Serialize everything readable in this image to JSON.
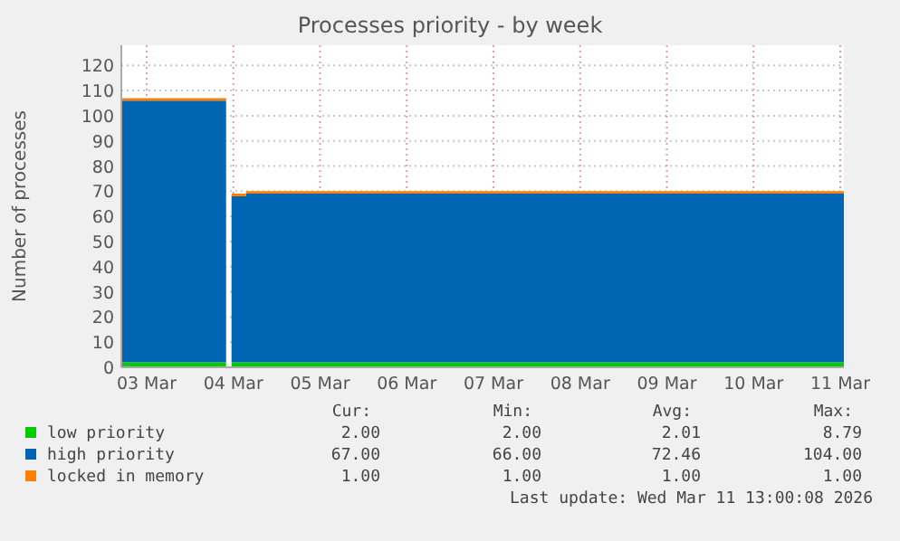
{
  "chart_data": {
    "type": "area",
    "stacked": true,
    "title": "Processes priority - by week",
    "ylabel": "Number of processes",
    "xlim": [
      "2026-03-03T05:00",
      "2026-03-11T13:00"
    ],
    "xticks": [
      {
        "value": "2026-03-03T12:00",
        "label": "03 Mar"
      },
      {
        "value": "2026-03-04T12:00",
        "label": "04 Mar"
      },
      {
        "value": "2026-03-05T12:00",
        "label": "05 Mar"
      },
      {
        "value": "2026-03-06T12:00",
        "label": "06 Mar"
      },
      {
        "value": "2026-03-07T12:00",
        "label": "07 Mar"
      },
      {
        "value": "2026-03-08T12:00",
        "label": "08 Mar"
      },
      {
        "value": "2026-03-09T12:00",
        "label": "09 Mar"
      },
      {
        "value": "2026-03-10T12:00",
        "label": "10 Mar"
      },
      {
        "value": "2026-03-11T12:00",
        "label": "11 Mar"
      }
    ],
    "ylim": [
      0,
      128
    ],
    "yticks": [
      0,
      10,
      20,
      30,
      40,
      50,
      60,
      70,
      80,
      90,
      100,
      110,
      120
    ],
    "grid": true,
    "legend": "bottom",
    "x": [
      "2026-03-03T05:00",
      "2026-03-04T10:00",
      "2026-03-04T10:30",
      "2026-03-04T11:30",
      "2026-03-04T15:30",
      "2026-03-11T13:00"
    ],
    "series": [
      {
        "name": "low priority",
        "color": "#00cc00",
        "values": [
          2,
          2,
          null,
          2,
          2,
          2
        ]
      },
      {
        "name": "high priority",
        "color": "#0066b3",
        "values": [
          104,
          104,
          null,
          66,
          67,
          67
        ]
      },
      {
        "name": "locked in memory",
        "color": "#ff8000",
        "values": [
          1,
          1,
          null,
          1,
          1,
          1
        ]
      }
    ],
    "annotations": [
      "Cur:",
      "Min:",
      "Avg:",
      "Max:",
      "2.00",
      "2.00",
      "2.01",
      "8.79",
      "67.00",
      "66.00",
      "72.46",
      "104.00",
      "1.00",
      "1.00",
      "1.00",
      "1.00",
      "Last update: Wed Mar 11 13:00:08 2026"
    ]
  }
}
